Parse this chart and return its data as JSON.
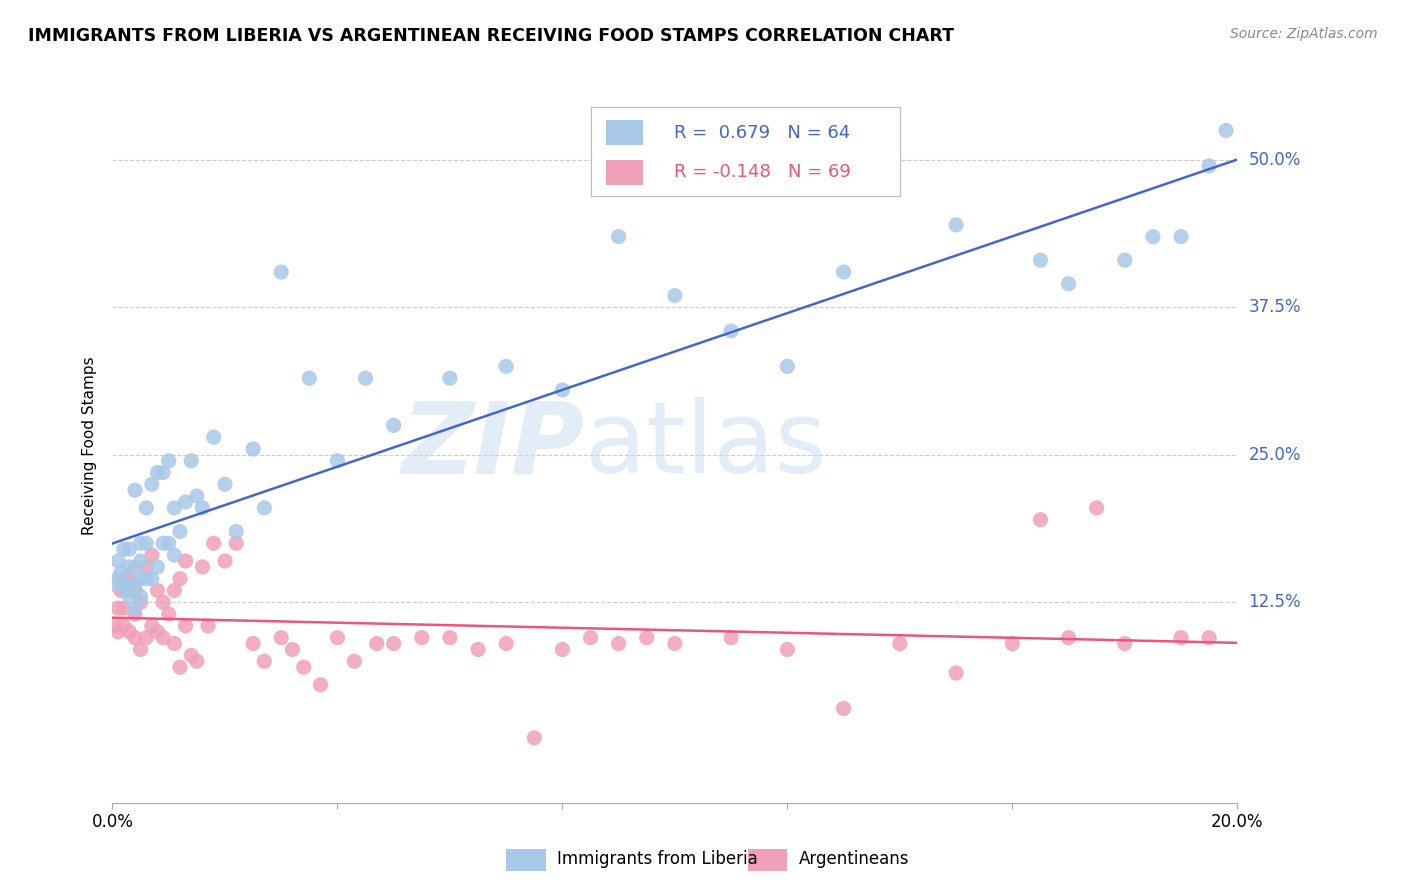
{
  "title": "IMMIGRANTS FROM LIBERIA VS ARGENTINEAN RECEIVING FOOD STAMPS CORRELATION CHART",
  "source": "Source: ZipAtlas.com",
  "ylabel": "Receiving Food Stamps",
  "xlim": [
    0.0,
    0.2
  ],
  "ylim": [
    -0.045,
    0.56
  ],
  "yticks": [
    0.125,
    0.25,
    0.375,
    0.5
  ],
  "ytick_labels": [
    "12.5%",
    "25.0%",
    "37.5%",
    "50.0%"
  ],
  "xtick_positions": [
    0.0,
    0.04,
    0.08,
    0.12,
    0.16,
    0.2
  ],
  "xtick_labels": [
    "0.0%",
    "",
    "",
    "",
    "",
    "20.0%"
  ],
  "liberia_color": "#a8c8e8",
  "argentina_color": "#f0a0b8",
  "liberia_line_color": "#4466cc",
  "argentina_line_color": "#ee5577",
  "liberia_R": 0.679,
  "liberia_N": 64,
  "argentina_R": -0.148,
  "argentina_N": 69,
  "watermark_zip": "ZIP",
  "watermark_atlas": "atlas",
  "background_color": "#ffffff",
  "grid_color": "#cccccc",
  "liberia_x": [
    0.0005,
    0.001,
    0.001,
    0.0015,
    0.002,
    0.002,
    0.0025,
    0.003,
    0.003,
    0.003,
    0.003,
    0.0035,
    0.004,
    0.004,
    0.004,
    0.004,
    0.005,
    0.005,
    0.005,
    0.005,
    0.006,
    0.006,
    0.006,
    0.007,
    0.007,
    0.008,
    0.008,
    0.009,
    0.009,
    0.01,
    0.01,
    0.011,
    0.011,
    0.012,
    0.013,
    0.014,
    0.015,
    0.016,
    0.018,
    0.02,
    0.022,
    0.025,
    0.027,
    0.03,
    0.035,
    0.04,
    0.045,
    0.05,
    0.06,
    0.07,
    0.08,
    0.09,
    0.1,
    0.11,
    0.12,
    0.13,
    0.15,
    0.165,
    0.17,
    0.18,
    0.185,
    0.19,
    0.195,
    0.198
  ],
  "liberia_y": [
    0.14,
    0.145,
    0.16,
    0.15,
    0.14,
    0.17,
    0.135,
    0.13,
    0.14,
    0.155,
    0.17,
    0.135,
    0.12,
    0.14,
    0.155,
    0.22,
    0.13,
    0.145,
    0.16,
    0.175,
    0.145,
    0.175,
    0.205,
    0.145,
    0.225,
    0.155,
    0.235,
    0.175,
    0.235,
    0.175,
    0.245,
    0.165,
    0.205,
    0.185,
    0.21,
    0.245,
    0.215,
    0.205,
    0.265,
    0.225,
    0.185,
    0.255,
    0.205,
    0.405,
    0.315,
    0.245,
    0.315,
    0.275,
    0.315,
    0.325,
    0.305,
    0.435,
    0.385,
    0.355,
    0.325,
    0.405,
    0.445,
    0.415,
    0.395,
    0.415,
    0.435,
    0.435,
    0.495,
    0.525
  ],
  "argentina_x": [
    0.0005,
    0.001,
    0.001,
    0.0015,
    0.002,
    0.002,
    0.002,
    0.003,
    0.003,
    0.003,
    0.004,
    0.004,
    0.004,
    0.005,
    0.005,
    0.006,
    0.006,
    0.007,
    0.007,
    0.008,
    0.008,
    0.009,
    0.009,
    0.01,
    0.011,
    0.011,
    0.012,
    0.012,
    0.013,
    0.013,
    0.014,
    0.015,
    0.016,
    0.017,
    0.018,
    0.02,
    0.022,
    0.025,
    0.027,
    0.03,
    0.032,
    0.034,
    0.037,
    0.04,
    0.043,
    0.047,
    0.05,
    0.055,
    0.06,
    0.065,
    0.07,
    0.075,
    0.08,
    0.085,
    0.09,
    0.095,
    0.1,
    0.11,
    0.12,
    0.13,
    0.14,
    0.15,
    0.16,
    0.17,
    0.18,
    0.19,
    0.195,
    0.175,
    0.165
  ],
  "argentina_y": [
    0.105,
    0.12,
    0.1,
    0.135,
    0.12,
    0.145,
    0.105,
    0.1,
    0.135,
    0.145,
    0.095,
    0.115,
    0.135,
    0.085,
    0.125,
    0.095,
    0.155,
    0.105,
    0.165,
    0.1,
    0.135,
    0.095,
    0.125,
    0.115,
    0.09,
    0.135,
    0.07,
    0.145,
    0.105,
    0.16,
    0.08,
    0.075,
    0.155,
    0.105,
    0.175,
    0.16,
    0.175,
    0.09,
    0.075,
    0.095,
    0.085,
    0.07,
    0.055,
    0.095,
    0.075,
    0.09,
    0.09,
    0.095,
    0.095,
    0.085,
    0.09,
    0.01,
    0.085,
    0.095,
    0.09,
    0.095,
    0.09,
    0.095,
    0.085,
    0.035,
    0.09,
    0.065,
    0.09,
    0.095,
    0.09,
    0.095,
    0.095,
    0.205,
    0.195
  ]
}
